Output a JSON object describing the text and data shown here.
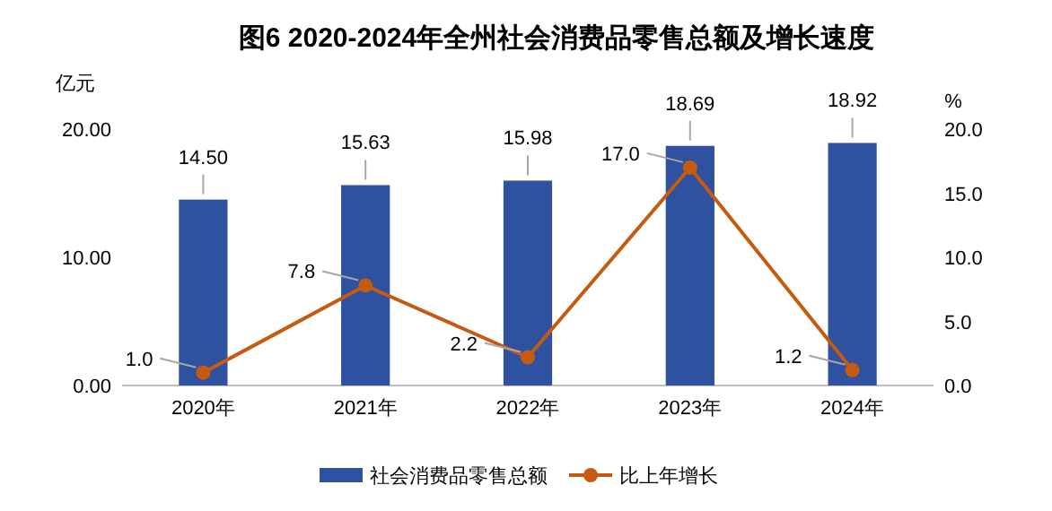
{
  "chart_data": {
    "type": "bar",
    "title": "图6  2020-2024年全州社会消费品零售总额及增长速度",
    "categories": [
      "2020年",
      "2021年",
      "2022年",
      "2023年",
      "2024年"
    ],
    "series": [
      {
        "name": "社会消费品零售总额",
        "color": "#2f52a0",
        "values": [
          14.5,
          15.63,
          15.98,
          18.69,
          18.92
        ],
        "value_labels": [
          "14.50",
          "15.63",
          "15.98",
          "18.69",
          "18.92"
        ]
      },
      {
        "name": "比上年增长",
        "type": "line",
        "axis": "y2",
        "color": "#c55a11",
        "marker": "circle",
        "values": [
          1.0,
          7.8,
          2.2,
          17.0,
          1.2
        ],
        "value_labels": [
          "1.0",
          "7.8",
          "2.2",
          "17.0",
          "1.2"
        ]
      }
    ],
    "ylabel": "亿元",
    "y2label": "%",
    "ylim": [
      0,
      20
    ],
    "yticks": [
      {
        "value": 0,
        "label": "0.00"
      },
      {
        "value": 10,
        "label": "10.00"
      },
      {
        "value": 20,
        "label": "20.00"
      }
    ],
    "y2lim": [
      0,
      20
    ],
    "y2ticks": [
      {
        "value": 0,
        "label": "0.0"
      },
      {
        "value": 5,
        "label": "5.0"
      },
      {
        "value": 10,
        "label": "10.0"
      },
      {
        "value": 15,
        "label": "15.0"
      },
      {
        "value": 20,
        "label": "20.0"
      }
    ],
    "grid": false,
    "legend": "bottom"
  }
}
